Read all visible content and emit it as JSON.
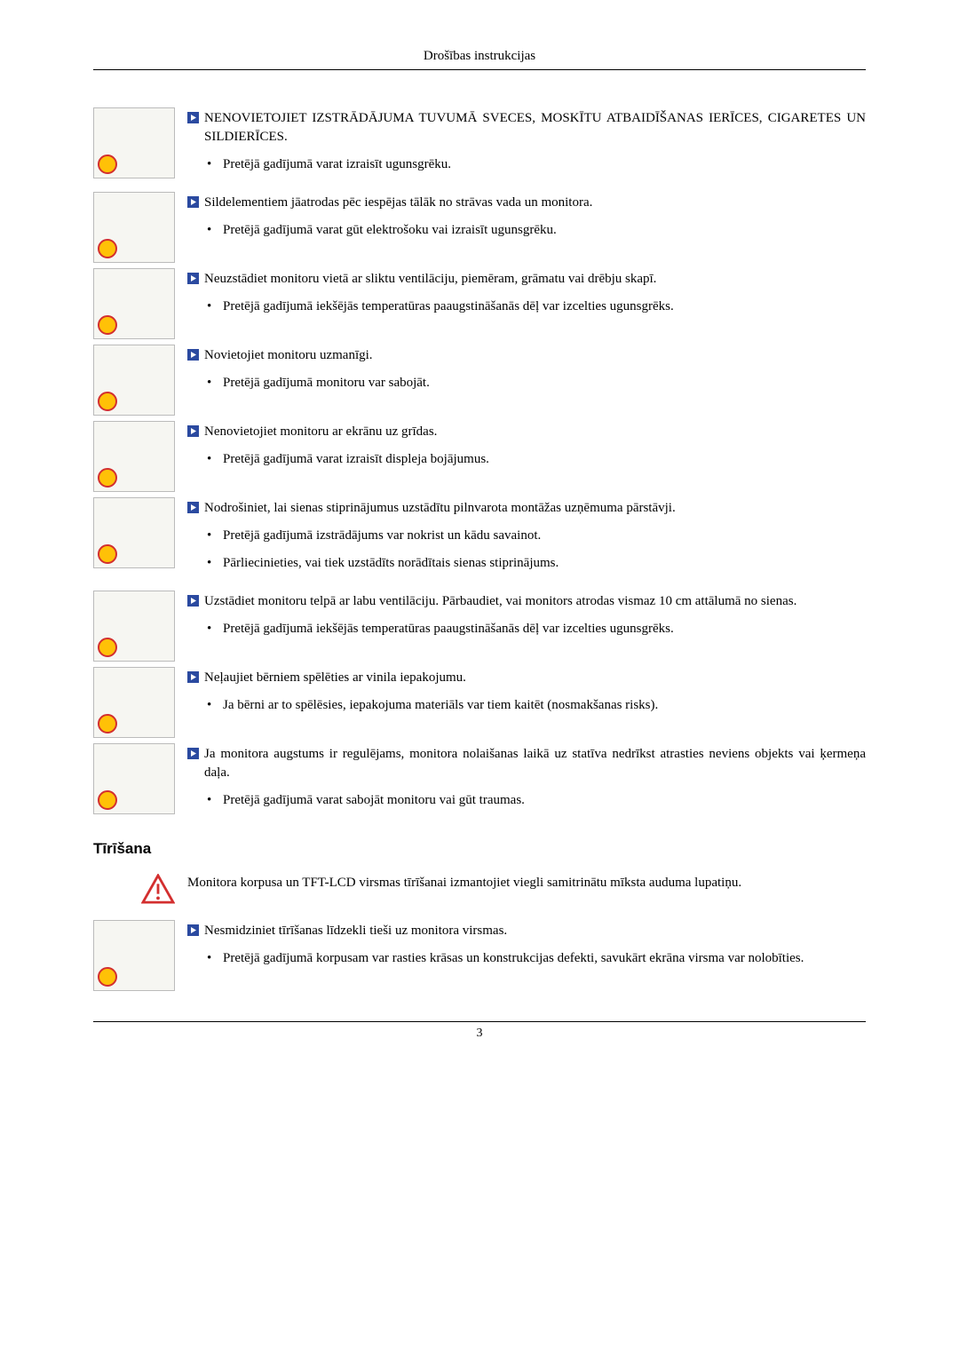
{
  "header": {
    "title": "Drošības instrukcijas"
  },
  "colors": {
    "arrow_fill": "#2b4aa0",
    "arrow_inner": "#ffffff",
    "warn_stroke": "#d32f2f",
    "warn_fill": "#ffffff"
  },
  "sections": [
    {
      "type": "item",
      "lead_upper": "NENOVIETOJIET IZSTRĀDĀJUMA TUVUMĀ SVECES, MOSKĪTU ATBAIDĪŠANAS IERĪCES, CIGARETES UN SILDIERĪCES.",
      "bullets": [
        "Pretējā gadījumā varat izraisīt ugunsgrēku."
      ]
    },
    {
      "type": "item",
      "lead": "Sildelementiem jāatrodas pēc iespējas tālāk no strāvas vada un monitora.",
      "bullets": [
        "Pretējā gadījumā varat gūt elektrošoku vai izraisīt ugunsgrēku."
      ]
    },
    {
      "type": "item",
      "lead": "Neuzstādiet monitoru vietā ar sliktu ventilāciju, piemēram, grāmatu vai drēbju skapī.",
      "bullets": [
        "Pretējā gadījumā iekšējās temperatūras paaugstināšanās dēļ var izcelties ugunsgrēks."
      ]
    },
    {
      "type": "item",
      "lead": "Novietojiet monitoru uzmanīgi.",
      "bullets": [
        "Pretējā gadījumā monitoru var sabojāt."
      ]
    },
    {
      "type": "item",
      "lead": "Nenovietojiet monitoru ar ekrānu uz grīdas.",
      "bullets": [
        "Pretējā gadījumā varat izraisīt displeja bojājumus."
      ]
    },
    {
      "type": "item",
      "lead": "Nodrošiniet, lai sienas stiprinājumus uzstādītu pilnvarota montāžas uzņēmuma pārstāvji.",
      "bullets": [
        "Pretējā gadījumā izstrādājums var nokrist un kādu savainot.",
        "Pārliecinieties, vai tiek uzstādīts norādītais sienas stiprinājums."
      ]
    },
    {
      "type": "item",
      "lead": "Uzstādiet monitoru telpā ar labu ventilāciju. Pārbaudiet, vai monitors atrodas vismaz 10 cm attālumā no sienas.",
      "bullets": [
        "Pretējā gadījumā iekšējās temperatūras paaugstināšanās dēļ var izcelties ugunsgrēks."
      ]
    },
    {
      "type": "item",
      "lead": "Neļaujiet bērniem spēlēties ar vinila iepakojumu.",
      "bullets": [
        "Ja bērni ar to spēlēsies, iepakojuma materiāls var tiem kaitēt (nosmakšanas risks)."
      ]
    },
    {
      "type": "item",
      "lead": "Ja monitora augstums ir regulējams, monitora nolaišanas laikā uz statīva nedrīkst atrasties neviens objekts vai ķermeņa daļa.",
      "bullets": [
        "Pretējā gadījumā varat sabojāt monitoru vai gūt traumas."
      ]
    }
  ],
  "section2_title": "Tīrīšana",
  "section2_intro": "Monitora korpusa un TFT-LCD virsmas tīrīšanai izmantojiet viegli samitrinātu mīksta auduma lupatiņu.",
  "section2_items": [
    {
      "lead": "Nesmidziniet tīrīšanas līdzekli tieši uz monitora virsmas.",
      "bullets": [
        "Pretējā gadījumā korpusam var rasties krāsas un konstrukcijas defekti, savukārt ekrāna virsma var nolobīties."
      ]
    }
  ],
  "footer": {
    "page_number": "3"
  }
}
